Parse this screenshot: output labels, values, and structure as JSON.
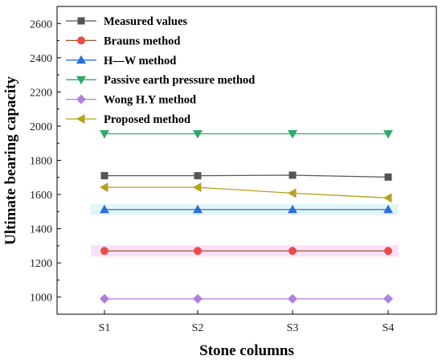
{
  "chart_data": {
    "type": "line",
    "xlabel": "Stone columns",
    "ylabel": "Ultimate bearing capacity",
    "categories": [
      "S1",
      "S2",
      "S3",
      "S4"
    ],
    "ylim": [
      900,
      2700
    ],
    "yticks": [
      1000,
      1200,
      1400,
      1600,
      1800,
      2000,
      2200,
      2400,
      2600
    ],
    "grid": false,
    "legend_position": "top-left",
    "series": [
      {
        "name": "Measured values",
        "values": [
          1710,
          1710,
          1713,
          1702
        ],
        "color": "#555555",
        "marker": "square"
      },
      {
        "name": "Brauns method",
        "values": [
          1270,
          1270,
          1270,
          1270
        ],
        "color": "#ec4a4a",
        "line_color": "#a0522d",
        "marker": "circle"
      },
      {
        "name": "H—W method",
        "values": [
          1512,
          1512,
          1512,
          1512
        ],
        "color": "#2a6fdb",
        "marker": "triangle-up"
      },
      {
        "name": "Passive earth pressure method",
        "values": [
          1955,
          1955,
          1955,
          1955
        ],
        "color": "#2eaa6a",
        "marker": "triangle-down"
      },
      {
        "name": "Wong H.Y method",
        "values": [
          990,
          990,
          990,
          990
        ],
        "color": "#b07fe0",
        "marker": "diamond"
      },
      {
        "name": "Proposed method",
        "values": [
          1642,
          1642,
          1608,
          1580
        ],
        "color": "#b5a21a",
        "marker": "triangle-left"
      }
    ]
  }
}
